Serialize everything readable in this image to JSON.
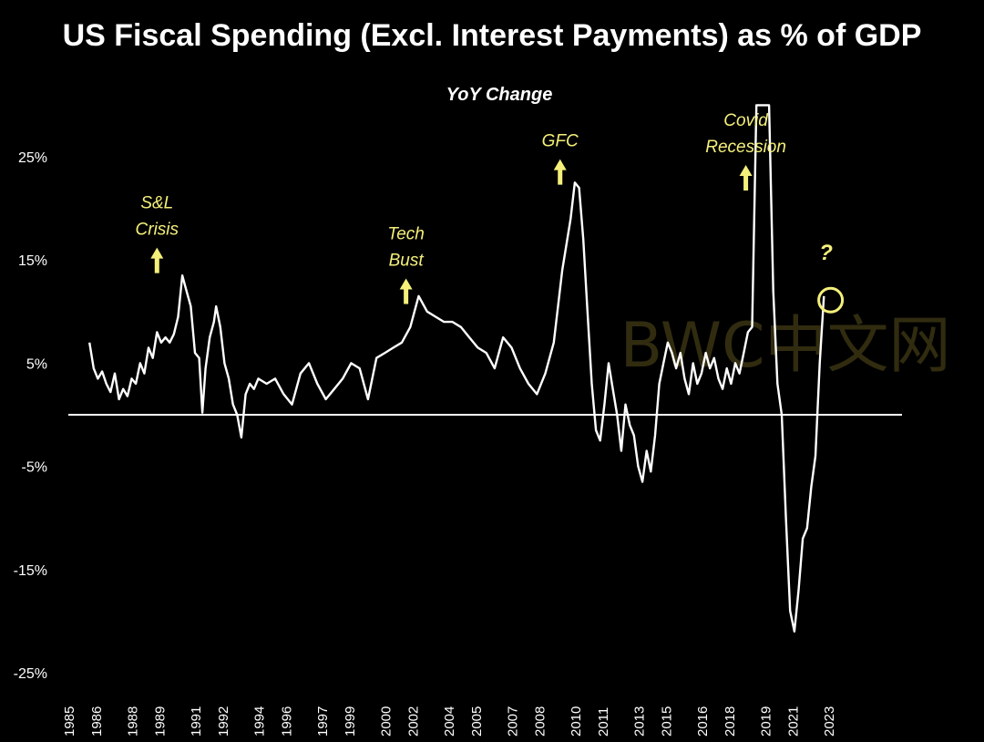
{
  "chart_data": {
    "type": "line",
    "title": "US Fiscal Spending (Excl. Interest Payments) as % of GDP",
    "subtitle": "YoY Change",
    "xlabel": "",
    "ylabel": "",
    "xlim": [
      1985,
      2024.5
    ],
    "ylim": [
      -25,
      30
    ],
    "grid": false,
    "zero_line": true,
    "y_ticks": [
      {
        "value": 25,
        "label": "25%"
      },
      {
        "value": 15,
        "label": "15%"
      },
      {
        "value": 5,
        "label": "5%"
      },
      {
        "value": -5,
        "label": "-5%"
      },
      {
        "value": -15,
        "label": "-15%"
      },
      {
        "value": -25,
        "label": "-25%"
      }
    ],
    "x_ticks": [
      {
        "value": 1985.0,
        "label": "1985"
      },
      {
        "value": 1986.3,
        "label": "1986"
      },
      {
        "value": 1988.0,
        "label": "1988"
      },
      {
        "value": 1989.3,
        "label": "1989"
      },
      {
        "value": 1991.0,
        "label": "1991"
      },
      {
        "value": 1992.3,
        "label": "1992"
      },
      {
        "value": 1994.0,
        "label": "1994"
      },
      {
        "value": 1995.3,
        "label": "1996"
      },
      {
        "value": 1997.0,
        "label": "1997"
      },
      {
        "value": 1998.3,
        "label": "1999"
      },
      {
        "value": 2000.0,
        "label": "2000"
      },
      {
        "value": 2001.3,
        "label": "2002"
      },
      {
        "value": 2003.0,
        "label": "2004"
      },
      {
        "value": 2004.3,
        "label": "2005"
      },
      {
        "value": 2006.0,
        "label": "2007"
      },
      {
        "value": 2007.3,
        "label": "2008"
      },
      {
        "value": 2009.0,
        "label": "2010"
      },
      {
        "value": 2010.3,
        "label": "2011"
      },
      {
        "value": 2012.0,
        "label": "2013"
      },
      {
        "value": 2013.3,
        "label": "2015"
      },
      {
        "value": 2015.0,
        "label": "2016"
      },
      {
        "value": 2016.3,
        "label": "2018"
      },
      {
        "value": 2018.0,
        "label": "2019"
      },
      {
        "value": 2019.3,
        "label": "2021"
      },
      {
        "value": 2021.0,
        "label": "2023"
      }
    ],
    "series": [
      {
        "color": "#ffffff",
        "points": [
          [
            1986.0,
            7.0
          ],
          [
            1986.2,
            4.5
          ],
          [
            1986.4,
            3.5
          ],
          [
            1986.6,
            4.2
          ],
          [
            1986.8,
            3.0
          ],
          [
            1987.0,
            2.2
          ],
          [
            1987.2,
            4.0
          ],
          [
            1987.4,
            1.5
          ],
          [
            1987.6,
            2.5
          ],
          [
            1987.8,
            1.8
          ],
          [
            1988.0,
            3.5
          ],
          [
            1988.2,
            3.0
          ],
          [
            1988.4,
            5.0
          ],
          [
            1988.6,
            4.0
          ],
          [
            1988.8,
            6.5
          ],
          [
            1989.0,
            5.5
          ],
          [
            1989.2,
            8.0
          ],
          [
            1989.4,
            7.0
          ],
          [
            1989.6,
            7.5
          ],
          [
            1989.8,
            7.0
          ],
          [
            1990.0,
            7.8
          ],
          [
            1990.2,
            9.5
          ],
          [
            1990.4,
            13.5
          ],
          [
            1990.6,
            12.0
          ],
          [
            1990.8,
            10.5
          ],
          [
            1991.0,
            6.0
          ],
          [
            1991.2,
            5.5
          ],
          [
            1991.35,
            0.2
          ],
          [
            1991.5,
            4.5
          ],
          [
            1991.7,
            7.5
          ],
          [
            1991.9,
            9.0
          ],
          [
            1992.0,
            10.5
          ],
          [
            1992.2,
            8.5
          ],
          [
            1992.4,
            5.0
          ],
          [
            1992.6,
            3.5
          ],
          [
            1992.8,
            1.0
          ],
          [
            1993.0,
            0.0
          ],
          [
            1993.2,
            -2.2
          ],
          [
            1993.4,
            2.0
          ],
          [
            1993.6,
            3.0
          ],
          [
            1993.8,
            2.5
          ],
          [
            1994.0,
            3.5
          ],
          [
            1994.4,
            3.0
          ],
          [
            1994.8,
            3.5
          ],
          [
            1995.2,
            2.0
          ],
          [
            1995.6,
            1.0
          ],
          [
            1996.0,
            4.0
          ],
          [
            1996.4,
            5.0
          ],
          [
            1996.8,
            3.0
          ],
          [
            1997.2,
            1.5
          ],
          [
            1997.6,
            2.5
          ],
          [
            1998.0,
            3.5
          ],
          [
            1998.4,
            5.0
          ],
          [
            1998.8,
            4.5
          ],
          [
            1999.2,
            1.5
          ],
          [
            1999.6,
            5.5
          ],
          [
            2000.0,
            6.0
          ],
          [
            2000.4,
            6.5
          ],
          [
            2000.8,
            7.0
          ],
          [
            2001.2,
            8.5
          ],
          [
            2001.6,
            11.5
          ],
          [
            2002.0,
            10.0
          ],
          [
            2002.4,
            9.5
          ],
          [
            2002.8,
            9.0
          ],
          [
            2003.2,
            9.0
          ],
          [
            2003.6,
            8.5
          ],
          [
            2004.0,
            7.5
          ],
          [
            2004.4,
            6.5
          ],
          [
            2004.8,
            6.0
          ],
          [
            2005.2,
            4.5
          ],
          [
            2005.6,
            7.5
          ],
          [
            2006.0,
            6.5
          ],
          [
            2006.4,
            4.5
          ],
          [
            2006.8,
            3.0
          ],
          [
            2007.2,
            2.0
          ],
          [
            2007.6,
            4.0
          ],
          [
            2008.0,
            7.0
          ],
          [
            2008.4,
            14.0
          ],
          [
            2008.8,
            19.0
          ],
          [
            2009.0,
            22.5
          ],
          [
            2009.2,
            22.0
          ],
          [
            2009.4,
            17.0
          ],
          [
            2009.6,
            10.0
          ],
          [
            2009.8,
            3.0
          ],
          [
            2010.0,
            -1.5
          ],
          [
            2010.2,
            -2.5
          ],
          [
            2010.4,
            1.0
          ],
          [
            2010.6,
            5.0
          ],
          [
            2010.8,
            2.5
          ],
          [
            2011.0,
            0.0
          ],
          [
            2011.2,
            -3.5
          ],
          [
            2011.4,
            1.0
          ],
          [
            2011.6,
            -1.0
          ],
          [
            2011.8,
            -2.0
          ],
          [
            2012.0,
            -5.0
          ],
          [
            2012.2,
            -6.5
          ],
          [
            2012.4,
            -3.5
          ],
          [
            2012.6,
            -5.5
          ],
          [
            2012.8,
            -2.0
          ],
          [
            2013.0,
            3.0
          ],
          [
            2013.2,
            5.0
          ],
          [
            2013.4,
            7.0
          ],
          [
            2013.6,
            6.0
          ],
          [
            2013.8,
            4.5
          ],
          [
            2014.0,
            6.0
          ],
          [
            2014.2,
            3.5
          ],
          [
            2014.4,
            2.0
          ],
          [
            2014.6,
            5.0
          ],
          [
            2014.8,
            3.0
          ],
          [
            2015.0,
            4.0
          ],
          [
            2015.2,
            6.0
          ],
          [
            2015.4,
            4.5
          ],
          [
            2015.6,
            5.5
          ],
          [
            2015.8,
            3.5
          ],
          [
            2016.0,
            2.5
          ],
          [
            2016.2,
            4.5
          ],
          [
            2016.4,
            3.0
          ],
          [
            2016.6,
            5.0
          ],
          [
            2016.8,
            4.0
          ],
          [
            2017.0,
            6.0
          ],
          [
            2017.2,
            8.0
          ],
          [
            2017.4,
            8.5
          ],
          [
            2017.6,
            30.0
          ],
          [
            2017.8,
            30.0
          ],
          [
            2018.0,
            30.0
          ],
          [
            2018.2,
            30.0
          ],
          [
            2018.4,
            12.0
          ],
          [
            2018.6,
            3.0
          ],
          [
            2018.8,
            0.0
          ],
          [
            2019.0,
            -10.0
          ],
          [
            2019.2,
            -19.0
          ],
          [
            2019.4,
            -21.0
          ],
          [
            2019.6,
            -17.0
          ],
          [
            2019.8,
            -12.0
          ],
          [
            2020.0,
            -11.0
          ],
          [
            2020.2,
            -7.0
          ],
          [
            2020.4,
            -4.0
          ],
          [
            2020.6,
            5.0
          ],
          [
            2020.8,
            11.5
          ]
        ]
      }
    ],
    "annotations": [
      {
        "label_lines": [
          "S&L",
          "Crisis"
        ],
        "color": "#f4f07a",
        "x": 1989.2,
        "y": 20
      },
      {
        "label_lines": [
          "Tech",
          "Bust"
        ],
        "color": "#f4f07a",
        "x": 2001.0,
        "y": 17
      },
      {
        "label_lines": [
          "GFC"
        ],
        "color": "#f4f07a",
        "x": 2008.3,
        "y": 26
      },
      {
        "label_lines": [
          "Covid",
          "Recession"
        ],
        "color": "#f4f07a",
        "x": 2017.1,
        "y": 28
      },
      {
        "label_lines": [
          "?"
        ],
        "color": "#f4f07a",
        "x": 2020.9,
        "y": 15
      }
    ],
    "watermark": "BWC中文网"
  }
}
